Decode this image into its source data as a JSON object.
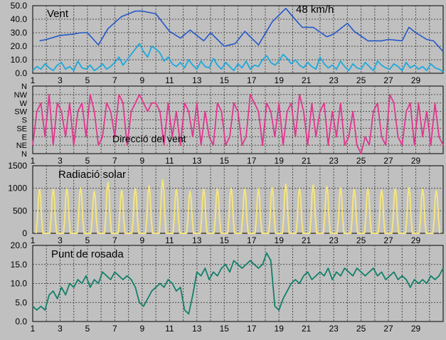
{
  "colors": {
    "background": "#c0c0c0",
    "plot": "#c0c0c0",
    "grid": "#4a4a4a",
    "gust": "#2457c9",
    "wind": "#1ea9dd",
    "direction": "#e0368f",
    "radiation": "#f5e57c",
    "dewpoint": "#13806a"
  },
  "x_tick_labels": [
    "1",
    "3",
    "5",
    "7",
    "9",
    "11",
    "13",
    "15",
    "17",
    "19",
    "21",
    "23",
    "25",
    "27",
    "29"
  ],
  "chart_data": [
    {
      "type": "line",
      "title": "Vent",
      "annotation": "48 km/h",
      "xlim": [
        1,
        31
      ],
      "ylim": [
        0,
        50
      ],
      "yticks": [
        0,
        10,
        20,
        30,
        40,
        50
      ],
      "ytick_labels": [
        "0.0",
        "10.0",
        "20.0",
        "30.0",
        "40.0",
        "50.0"
      ],
      "grid": true,
      "series": [
        {
          "role": "gust",
          "x": [
            1.5,
            2.0,
            3.0,
            4.0,
            4.5,
            5.0,
            5.8,
            6.5,
            7.5,
            8.5,
            9.0,
            10.0,
            11.0,
            11.8,
            12.5,
            13.5,
            14.0,
            15.0,
            15.8,
            16.5,
            17.5,
            18.5,
            19.5,
            20.0,
            20.7,
            21.5,
            22.5,
            23.0,
            24.0,
            24.5,
            25.5,
            26.5,
            27.0,
            28.0,
            28.5,
            29.0,
            29.8,
            30.3,
            31.0
          ],
          "y": [
            24,
            25,
            28,
            29,
            30,
            30,
            21,
            33,
            42,
            46,
            46,
            44,
            31,
            26,
            32,
            24,
            30,
            20,
            22,
            31,
            21,
            38,
            48,
            42,
            34,
            34,
            27,
            29,
            37,
            31,
            24,
            24,
            25,
            24,
            34,
            30,
            25,
            24,
            16
          ]
        },
        {
          "role": "wind",
          "x": [
            1.0,
            1.3,
            1.6,
            1.9,
            2.2,
            2.5,
            2.8,
            3.1,
            3.4,
            3.7,
            4.0,
            4.3,
            4.6,
            4.9,
            5.2,
            5.5,
            5.8,
            6.1,
            6.4,
            6.7,
            7.0,
            7.3,
            7.6,
            7.9,
            8.2,
            8.5,
            8.8,
            9.1,
            9.4,
            9.7,
            10.0,
            10.3,
            10.6,
            10.9,
            11.2,
            11.5,
            11.8,
            12.1,
            12.4,
            12.7,
            13.0,
            13.3,
            13.6,
            13.9,
            14.2,
            14.5,
            14.8,
            15.1,
            15.4,
            15.7,
            16.0,
            16.3,
            16.6,
            16.9,
            17.2,
            17.5,
            17.8,
            18.1,
            18.4,
            18.7,
            19.0,
            19.3,
            19.6,
            19.9,
            20.2,
            20.5,
            20.8,
            21.1,
            21.4,
            21.7,
            22.0,
            22.3,
            22.6,
            22.9,
            23.2,
            23.5,
            23.8,
            24.1,
            24.4,
            24.7,
            25.0,
            25.3,
            25.6,
            25.9,
            26.2,
            26.5,
            26.8,
            27.1,
            27.4,
            27.7,
            28.0,
            28.3,
            28.6,
            28.9,
            29.2,
            29.5,
            29.8,
            30.1,
            30.4,
            30.7,
            31.0
          ],
          "y": [
            2,
            5,
            3,
            7,
            4,
            2,
            6,
            8,
            3,
            5,
            2,
            9,
            4,
            3,
            6,
            2,
            4,
            7,
            3,
            5,
            8,
            12,
            6,
            10,
            14,
            18,
            22,
            16,
            12,
            20,
            18,
            15,
            9,
            12,
            7,
            5,
            8,
            4,
            10,
            6,
            3,
            9,
            5,
            4,
            11,
            6,
            3,
            8,
            5,
            2,
            7,
            4,
            9,
            3,
            6,
            5,
            10,
            13,
            8,
            6,
            9,
            14,
            11,
            7,
            10,
            6,
            4,
            8,
            5,
            3,
            12,
            7,
            4,
            6,
            3,
            9,
            5,
            2,
            7,
            4,
            3,
            8,
            5,
            2,
            9,
            6,
            4,
            3,
            7,
            5,
            2,
            8,
            4,
            6,
            3,
            5,
            2,
            7,
            4,
            3,
            1
          ]
        }
      ]
    },
    {
      "type": "line",
      "title": "Direcció del vent",
      "xlim": [
        1,
        31
      ],
      "ylim": [
        0,
        8
      ],
      "yticks": [
        0,
        1,
        2,
        3,
        4,
        5,
        6,
        7,
        8
      ],
      "ytick_labels": [
        "N",
        "NE",
        "E",
        "SE",
        "S",
        "SW",
        "W",
        "NW",
        "N"
      ],
      "grid": true,
      "series": [
        {
          "role": "direction",
          "x": [
            1.0,
            1.3,
            1.6,
            1.9,
            2.2,
            2.5,
            2.8,
            3.1,
            3.4,
            3.7,
            4.0,
            4.3,
            4.6,
            4.9,
            5.2,
            5.5,
            5.8,
            6.1,
            6.4,
            6.7,
            7.0,
            7.3,
            7.6,
            7.9,
            8.2,
            8.5,
            8.8,
            9.1,
            9.4,
            9.7,
            10.0,
            10.3,
            10.6,
            10.9,
            11.2,
            11.5,
            11.8,
            12.1,
            12.4,
            12.7,
            13.0,
            13.3,
            13.6,
            13.9,
            14.2,
            14.5,
            14.8,
            15.1,
            15.4,
            15.7,
            16.0,
            16.3,
            16.6,
            16.9,
            17.2,
            17.5,
            17.8,
            18.1,
            18.4,
            18.7,
            19.0,
            19.3,
            19.6,
            19.9,
            20.2,
            20.5,
            20.8,
            21.1,
            21.4,
            21.7,
            22.0,
            22.3,
            22.6,
            22.9,
            23.2,
            23.5,
            23.8,
            24.1,
            24.4,
            24.7,
            25.0,
            25.3,
            25.6,
            25.9,
            26.2,
            26.5,
            26.8,
            27.1,
            27.4,
            27.7,
            28.0,
            28.3,
            28.6,
            28.9,
            29.2,
            29.5,
            29.8,
            30.1,
            30.4,
            30.7,
            31.0
          ],
          "y": [
            1,
            5,
            6,
            2,
            7,
            1,
            6,
            5,
            2,
            6,
            1,
            5,
            6,
            2,
            7,
            5,
            1,
            2,
            6,
            5,
            2,
            7,
            6,
            1,
            5,
            6,
            7,
            6,
            5,
            6,
            6,
            5,
            1,
            6,
            2,
            5,
            1,
            6,
            5,
            2,
            6,
            1,
            5,
            2,
            1,
            6,
            5,
            1,
            2,
            6,
            5,
            1,
            2,
            7,
            6,
            5,
            1,
            6,
            5,
            2,
            6,
            1,
            5,
            6,
            2,
            7,
            5,
            1,
            6,
            2,
            5,
            6,
            1,
            5,
            2,
            6,
            1,
            2,
            5,
            1,
            0,
            2,
            1,
            5,
            6,
            2,
            1,
            7,
            6,
            2,
            1,
            5,
            6,
            1,
            6,
            2,
            5,
            1,
            6,
            2,
            1
          ]
        }
      ]
    },
    {
      "type": "area",
      "title": "Radiació solar",
      "xlim": [
        1,
        31
      ],
      "ylim": [
        0,
        1500
      ],
      "yticks": [
        0,
        500,
        1000,
        1500
      ],
      "ytick_labels": [
        "0",
        "500",
        "1000",
        "1500"
      ],
      "grid": true,
      "daily_peaks": [
        980,
        990,
        1000,
        1020,
        940,
        1140,
        960,
        1000,
        1060,
        1200,
        980,
        940,
        990,
        1000,
        1010,
        990,
        1000,
        1020,
        1100,
        1000,
        1080,
        1050,
        1010,
        980,
        1000,
        970,
        1000,
        1020,
        990,
        960
      ]
    },
    {
      "type": "line",
      "title": "Punt de rosada",
      "xlim": [
        1,
        31
      ],
      "ylim": [
        0,
        20
      ],
      "yticks": [
        0,
        5,
        10,
        15,
        20
      ],
      "ytick_labels": [
        "0.0",
        "5.0",
        "10.0",
        "15.0",
        "20.0"
      ],
      "grid": true,
      "series": [
        {
          "role": "dewpoint",
          "x": [
            1.0,
            1.3,
            1.6,
            1.9,
            2.2,
            2.5,
            2.8,
            3.1,
            3.4,
            3.7,
            4.0,
            4.3,
            4.6,
            4.9,
            5.2,
            5.5,
            5.8,
            6.1,
            6.4,
            6.7,
            7.0,
            7.3,
            7.6,
            7.9,
            8.2,
            8.5,
            8.8,
            9.1,
            9.4,
            9.7,
            10.0,
            10.3,
            10.6,
            10.9,
            11.2,
            11.5,
            11.8,
            12.1,
            12.4,
            12.7,
            13.0,
            13.3,
            13.6,
            13.9,
            14.2,
            14.5,
            14.8,
            15.1,
            15.4,
            15.7,
            16.0,
            16.3,
            16.6,
            16.9,
            17.2,
            17.5,
            17.8,
            18.1,
            18.4,
            18.7,
            19.0,
            19.3,
            19.6,
            19.9,
            20.2,
            20.5,
            20.8,
            21.1,
            21.4,
            21.7,
            22.0,
            22.3,
            22.6,
            22.9,
            23.2,
            23.5,
            23.8,
            24.1,
            24.4,
            24.7,
            25.0,
            25.3,
            25.6,
            25.9,
            26.2,
            26.5,
            26.8,
            27.1,
            27.4,
            27.7,
            28.0,
            28.3,
            28.6,
            28.9,
            29.2,
            29.5,
            29.8,
            30.1,
            30.4,
            30.7,
            31.0
          ],
          "y": [
            4,
            3,
            4,
            3,
            7,
            8,
            6,
            9,
            7,
            10,
            9,
            11,
            10,
            12,
            9,
            11,
            10,
            13,
            12,
            11,
            13,
            12,
            11,
            12,
            11,
            9,
            5,
            4,
            6,
            8,
            9,
            10,
            9,
            11,
            10,
            8,
            9,
            3,
            2,
            7,
            13,
            12,
            14,
            11,
            13,
            12,
            14,
            15,
            13,
            16,
            15,
            14,
            15,
            16,
            15,
            14,
            15,
            18,
            16,
            4,
            3,
            6,
            8,
            10,
            11,
            10,
            12,
            13,
            11,
            12,
            13,
            12,
            14,
            11,
            13,
            12,
            14,
            13,
            12,
            14,
            13,
            12,
            13,
            14,
            12,
            13,
            11,
            12,
            13,
            11,
            12,
            11,
            9,
            11,
            10,
            11,
            10,
            12,
            11,
            12,
            14
          ]
        }
      ]
    }
  ]
}
